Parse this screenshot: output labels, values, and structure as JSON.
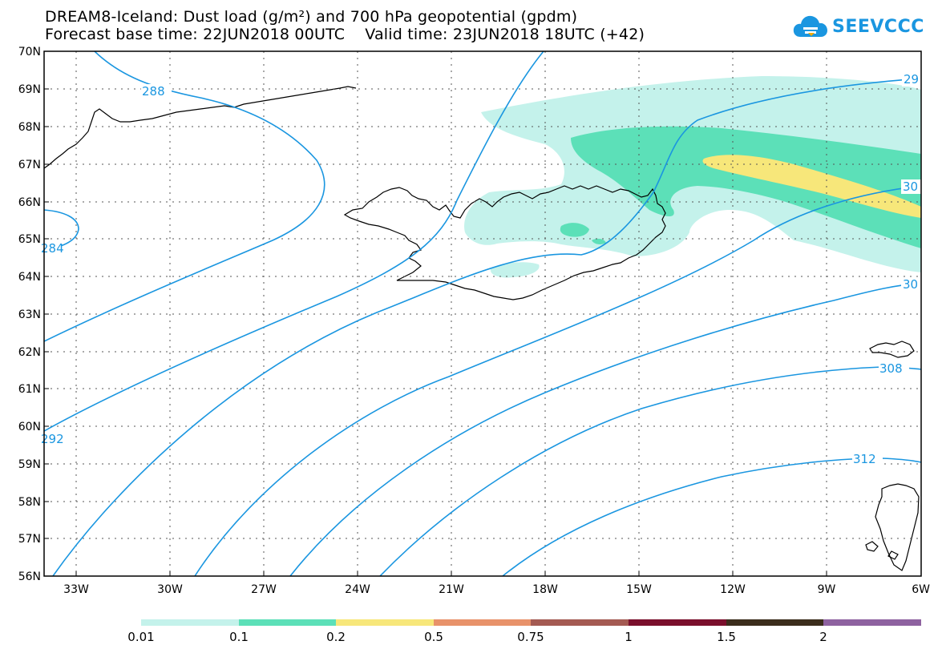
{
  "header": {
    "title_line1": "DREAM8-Iceland: Dust load (g/m²) and 700 hPa geopotential (gpdm)",
    "title_line2": "Forecast base time: 22JUN2018 00UTC    Valid time: 23JUN2018 18UTC (+42)"
  },
  "logo": {
    "text": "SEEVCCC",
    "icon": "cloud-icon",
    "color": "#1a96e0"
  },
  "map": {
    "lat_labels": [
      "70N",
      "69N",
      "68N",
      "67N",
      "66N",
      "65N",
      "64N",
      "63N",
      "62N",
      "61N",
      "60N",
      "59N",
      "58N",
      "57N",
      "56N"
    ],
    "lon_labels": [
      "33W",
      "30W",
      "27W",
      "24W",
      "21W",
      "18W",
      "15W",
      "12W",
      "9W",
      "6W"
    ],
    "grid": "dotted",
    "contour_color": "#1a96e0",
    "contour_labels": [
      "288",
      "284",
      "292",
      "29",
      "30",
      "30",
      "308",
      "312"
    ]
  },
  "colorbar": {
    "labels": [
      "0.01",
      "0.1",
      "0.2",
      "0.5",
      "0.75",
      "1",
      "1.5",
      "2"
    ],
    "colors": [
      "#c4f2eb",
      "#5ce0b8",
      "#f7e77a",
      "#e8926a",
      "#a45a52",
      "#7a0f2c",
      "#3b2d1c",
      "#8e62a0"
    ]
  }
}
